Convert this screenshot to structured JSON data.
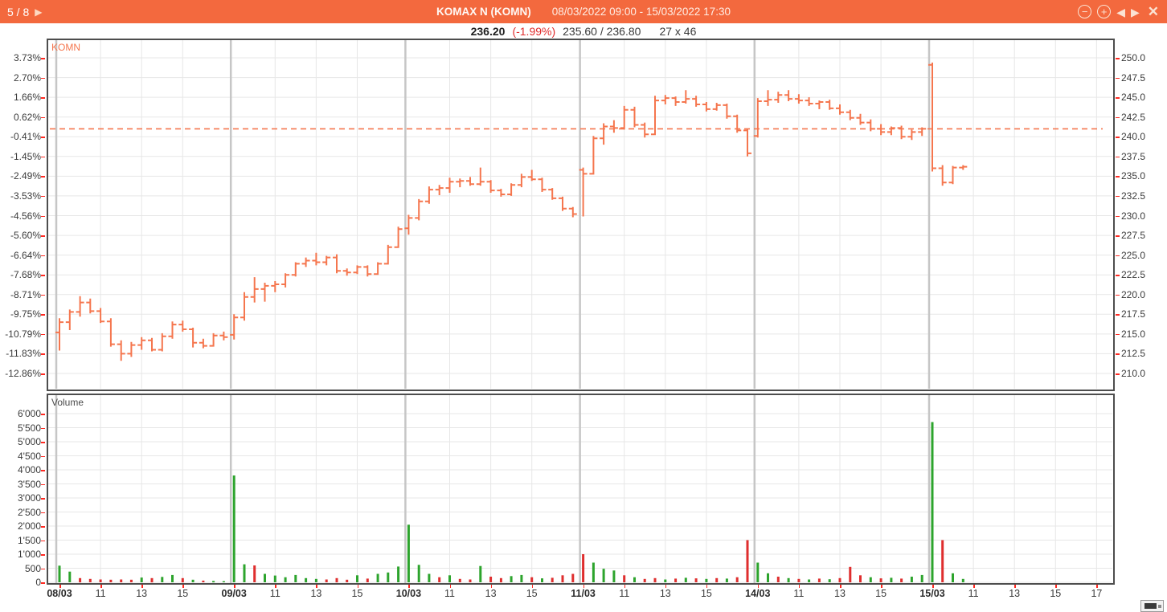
{
  "header": {
    "page_indicator": "5 / 8",
    "page_next_icon": "▶",
    "title": "KOMAX N (KOMN)",
    "date_range": "08/03/2022 09:00 - 15/03/2022 17:30",
    "controls": {
      "zoom_out": "−",
      "zoom_in": "+",
      "prev": "◀",
      "next": "▶",
      "close": "✕"
    }
  },
  "quote": {
    "last": "236.20",
    "change_pct": "(-1.99%)",
    "bid_ask": "235.60 / 236.80",
    "size": "27 x 46"
  },
  "chart_data": {
    "type": "ohlc",
    "title": "KOMAX N (KOMN)",
    "symbol_label": "KOMN",
    "volume_label": "Volume",
    "reference_price": 241.0,
    "price_axis": {
      "min": 210,
      "max": 250,
      "step": 2.5,
      "labels": [
        "250.0",
        "247.5",
        "245.0",
        "242.5",
        "240.0",
        "237.5",
        "235.0",
        "232.5",
        "230.0",
        "227.5",
        "225.0",
        "222.5",
        "220.0",
        "217.5",
        "215.0",
        "212.5",
        "210.0"
      ]
    },
    "percent_axis_labels": [
      "3.73%",
      "2.70%",
      "1.66%",
      "0.62%",
      "-0.41%",
      "-1.45%",
      "-2.49%",
      "-3.53%",
      "-4.56%",
      "-5.60%",
      "-6.64%",
      "-7.68%",
      "-8.71%",
      "-9.75%",
      "-10.79%",
      "-11.83%",
      "-12.86%"
    ],
    "volume_axis": {
      "min": 0,
      "max": 6000,
      "step": 500,
      "labels": [
        "6'000",
        "5'500",
        "5'000",
        "4'500",
        "4'000",
        "3'500",
        "3'000",
        "2'500",
        "2'000",
        "1'500",
        "1'000",
        "500",
        "0"
      ]
    },
    "bars_per_day": 17,
    "time_ticks": [
      {
        "label": "08/03",
        "pos": 0,
        "bold": true
      },
      {
        "label": "11",
        "pos": 4
      },
      {
        "label": "13",
        "pos": 8
      },
      {
        "label": "15",
        "pos": 12
      },
      {
        "label": "09/03",
        "pos": 17,
        "bold": true
      },
      {
        "label": "11",
        "pos": 21
      },
      {
        "label": "13",
        "pos": 25
      },
      {
        "label": "15",
        "pos": 29
      },
      {
        "label": "10/03",
        "pos": 34,
        "bold": true
      },
      {
        "label": "11",
        "pos": 38
      },
      {
        "label": "13",
        "pos": 42
      },
      {
        "label": "15",
        "pos": 46
      },
      {
        "label": "11/03",
        "pos": 51,
        "bold": true
      },
      {
        "label": "11",
        "pos": 55
      },
      {
        "label": "13",
        "pos": 59
      },
      {
        "label": "15",
        "pos": 63
      },
      {
        "label": "14/03",
        "pos": 68,
        "bold": true
      },
      {
        "label": "11",
        "pos": 72
      },
      {
        "label": "13",
        "pos": 76
      },
      {
        "label": "15",
        "pos": 80
      },
      {
        "label": "15/03",
        "pos": 85,
        "bold": true
      },
      {
        "label": "11",
        "pos": 89
      },
      {
        "label": "13",
        "pos": 93
      },
      {
        "label": "15",
        "pos": 97
      },
      {
        "label": "17",
        "pos": 101
      }
    ],
    "colors": {
      "bar": "#F5764E",
      "reference_line": "#F5764E",
      "volume_up": "#2DA42D",
      "volume_down": "#DF2E2E"
    },
    "days": [
      {
        "date": "08/03",
        "bars": [
          [
            215.2,
            217.0,
            212.9,
            216.5,
            590,
            "g"
          ],
          [
            216.5,
            218.1,
            215.5,
            217.8,
            380,
            "g"
          ],
          [
            217.8,
            219.8,
            217.2,
            219.0,
            150,
            "r"
          ],
          [
            219.0,
            219.5,
            217.6,
            217.9,
            120,
            "r"
          ],
          [
            217.9,
            218.3,
            216.4,
            216.6,
            100,
            "r"
          ],
          [
            216.6,
            217.0,
            213.4,
            213.7,
            90,
            "r"
          ],
          [
            213.7,
            214.2,
            211.6,
            212.5,
            100,
            "r"
          ],
          [
            212.5,
            214.0,
            212.1,
            213.6,
            90,
            "r"
          ],
          [
            213.6,
            214.6,
            213.0,
            214.2,
            170,
            "g"
          ],
          [
            214.2,
            214.5,
            212.8,
            213.0,
            150,
            "r"
          ],
          [
            213.0,
            215.1,
            212.8,
            214.7,
            190,
            "g"
          ],
          [
            214.7,
            216.6,
            214.4,
            216.2,
            260,
            "g"
          ],
          [
            216.2,
            216.7,
            215.3,
            215.6,
            150,
            "r"
          ],
          [
            215.6,
            215.8,
            213.3,
            213.9,
            90,
            "g"
          ],
          [
            213.9,
            214.4,
            213.2,
            213.5,
            60,
            "r"
          ],
          [
            213.5,
            215.1,
            213.4,
            214.8,
            50,
            "g"
          ],
          [
            214.8,
            215.3,
            214.2,
            214.6,
            40,
            "g"
          ]
        ]
      },
      {
        "date": "09/03",
        "bars": [
          [
            214.9,
            217.5,
            214.3,
            217.1,
            3800,
            "g"
          ],
          [
            217.1,
            220.3,
            216.7,
            219.7,
            640,
            "g"
          ],
          [
            219.7,
            222.2,
            219.0,
            220.7,
            600,
            "r"
          ],
          [
            220.7,
            221.5,
            219.1,
            221.1,
            300,
            "g"
          ],
          [
            221.1,
            221.7,
            220.3,
            221.3,
            240,
            "g"
          ],
          [
            221.3,
            222.7,
            220.9,
            222.5,
            180,
            "g"
          ],
          [
            222.5,
            224.1,
            222.3,
            223.9,
            260,
            "g"
          ],
          [
            223.9,
            224.7,
            223.5,
            224.3,
            150,
            "g"
          ],
          [
            224.3,
            225.3,
            223.7,
            224.1,
            120,
            "g"
          ],
          [
            224.1,
            224.9,
            223.7,
            224.7,
            100,
            "r"
          ],
          [
            224.7,
            225.1,
            222.7,
            223.0,
            150,
            "r"
          ],
          [
            223.0,
            223.3,
            222.4,
            222.8,
            90,
            "r"
          ],
          [
            222.8,
            223.7,
            222.6,
            223.5,
            250,
            "g"
          ],
          [
            223.5,
            223.7,
            222.3,
            222.6,
            130,
            "r"
          ],
          [
            222.6,
            224.1,
            222.5,
            223.9,
            300,
            "g"
          ],
          [
            223.9,
            226.3,
            223.8,
            226.0,
            350,
            "g"
          ],
          [
            226.0,
            228.6,
            225.9,
            228.3,
            560,
            "g"
          ]
        ]
      },
      {
        "date": "10/03",
        "bars": [
          [
            228.4,
            230.1,
            227.6,
            229.7,
            2050,
            "g"
          ],
          [
            229.7,
            232.1,
            229.4,
            231.8,
            620,
            "g"
          ],
          [
            231.8,
            233.7,
            231.5,
            233.3,
            300,
            "g"
          ],
          [
            233.3,
            233.9,
            232.6,
            233.5,
            180,
            "r"
          ],
          [
            233.5,
            234.8,
            232.9,
            234.3,
            250,
            "g"
          ],
          [
            234.3,
            234.7,
            233.6,
            234.4,
            120,
            "r"
          ],
          [
            234.4,
            234.9,
            233.8,
            234.0,
            100,
            "r"
          ],
          [
            234.0,
            236.1,
            233.8,
            234.3,
            580,
            "g"
          ],
          [
            234.3,
            234.5,
            232.9,
            233.2,
            200,
            "r"
          ],
          [
            233.2,
            233.4,
            232.4,
            232.7,
            150,
            "r"
          ],
          [
            232.7,
            234.1,
            232.5,
            233.9,
            220,
            "g"
          ],
          [
            233.9,
            235.3,
            233.6,
            234.9,
            260,
            "g"
          ],
          [
            234.9,
            235.8,
            234.4,
            234.6,
            180,
            "r"
          ],
          [
            234.6,
            234.8,
            233.0,
            233.3,
            140,
            "g"
          ],
          [
            233.3,
            233.5,
            232.0,
            232.2,
            160,
            "r"
          ],
          [
            232.2,
            232.4,
            230.6,
            230.9,
            250,
            "r"
          ],
          [
            230.9,
            231.1,
            229.8,
            230.2,
            300,
            "r"
          ]
        ]
      },
      {
        "date": "11/03",
        "bars": [
          [
            235.8,
            236.1,
            229.9,
            235.3,
            1000,
            "r"
          ],
          [
            235.3,
            240.1,
            235.2,
            239.8,
            700,
            "g"
          ],
          [
            239.8,
            241.7,
            239.0,
            241.3,
            480,
            "g"
          ],
          [
            241.3,
            242.1,
            240.5,
            241.1,
            420,
            "g"
          ],
          [
            241.1,
            243.9,
            240.9,
            243.4,
            250,
            "r"
          ],
          [
            243.4,
            243.8,
            241.2,
            241.5,
            180,
            "g"
          ],
          [
            241.5,
            241.8,
            239.9,
            240.3,
            120,
            "r"
          ],
          [
            240.3,
            245.2,
            240.2,
            244.6,
            150,
            "r"
          ],
          [
            244.6,
            245.3,
            244.1,
            244.9,
            100,
            "g"
          ],
          [
            244.9,
            245.1,
            243.9,
            244.4,
            130,
            "r"
          ],
          [
            244.4,
            245.9,
            244.2,
            244.8,
            160,
            "g"
          ],
          [
            244.8,
            245.2,
            243.8,
            244.1,
            140,
            "r"
          ],
          [
            244.1,
            244.4,
            243.2,
            243.5,
            120,
            "g"
          ],
          [
            243.5,
            244.3,
            243.3,
            244.0,
            150,
            "r"
          ],
          [
            244.0,
            244.2,
            242.3,
            242.6,
            130,
            "g"
          ],
          [
            242.6,
            242.8,
            240.5,
            240.8,
            180,
            "r"
          ],
          [
            240.8,
            241.0,
            237.5,
            237.9,
            1500,
            "r"
          ]
        ]
      },
      {
        "date": "14/03",
        "bars": [
          [
            240.1,
            244.9,
            239.9,
            244.5,
            700,
            "g"
          ],
          [
            244.5,
            245.9,
            243.9,
            244.7,
            320,
            "g"
          ],
          [
            244.7,
            245.7,
            244.3,
            245.3,
            200,
            "r"
          ],
          [
            245.3,
            245.9,
            244.5,
            244.8,
            150,
            "g"
          ],
          [
            244.8,
            245.4,
            244.2,
            244.6,
            120,
            "r"
          ],
          [
            244.6,
            245.0,
            243.9,
            244.2,
            100,
            "g"
          ],
          [
            244.2,
            244.6,
            243.5,
            244.4,
            130,
            "r"
          ],
          [
            244.4,
            244.7,
            243.4,
            243.6,
            110,
            "g"
          ],
          [
            243.6,
            244.1,
            242.8,
            243.1,
            150,
            "r"
          ],
          [
            243.1,
            243.4,
            242.1,
            242.4,
            550,
            "r"
          ],
          [
            242.4,
            242.9,
            241.5,
            241.8,
            250,
            "r"
          ],
          [
            241.8,
            242.2,
            240.7,
            241.0,
            180,
            "g"
          ],
          [
            241.0,
            241.6,
            240.2,
            240.6,
            140,
            "r"
          ],
          [
            240.6,
            241.3,
            240.2,
            241.1,
            160,
            "g"
          ],
          [
            241.1,
            241.4,
            239.7,
            240.0,
            130,
            "r"
          ],
          [
            240.0,
            240.9,
            239.6,
            240.6,
            200,
            "g"
          ],
          [
            240.6,
            241.2,
            240.1,
            241.0,
            260,
            "g"
          ]
        ]
      },
      {
        "date": "15/03",
        "bars": [
          [
            249.1,
            249.4,
            235.6,
            236.0,
            5700,
            "g"
          ],
          [
            236.0,
            236.4,
            233.8,
            234.2,
            1500,
            "r"
          ],
          [
            234.2,
            236.3,
            234.0,
            236.1,
            320,
            "g"
          ],
          [
            236.1,
            236.4,
            235.8,
            236.2,
            120,
            "g"
          ]
        ]
      }
    ]
  }
}
